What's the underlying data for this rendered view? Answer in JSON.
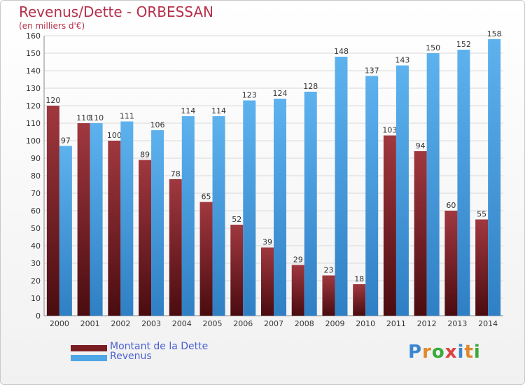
{
  "header": {
    "title": "Revenus/Dette - ORBESSAN",
    "subtitle": "(en milliers d'€)"
  },
  "legend": {
    "items": [
      {
        "label": "Montant de la Dette",
        "color": "#7b1e23"
      },
      {
        "label": "Revenus",
        "color": "#4ea6e6"
      }
    ]
  },
  "logo": {
    "letters": [
      "P",
      "r",
      "o",
      "x",
      "i",
      "t",
      "i"
    ],
    "colors": [
      "#3a86d0",
      "#e0892a",
      "#3aaa3a",
      "#e04040",
      "#3a86d0",
      "#e0892a",
      "#3aaa3a"
    ]
  },
  "chart_data": {
    "type": "bar",
    "title": "Revenus/Dette - ORBESSAN",
    "subtitle": "(en milliers d'€)",
    "categories": [
      "2000",
      "2001",
      "2002",
      "2003",
      "2004",
      "2005",
      "2006",
      "2007",
      "2008",
      "2009",
      "2010",
      "2011",
      "2012",
      "2013",
      "2014"
    ],
    "series": [
      {
        "name": "Montant de la Dette",
        "color": "#7b1e23",
        "values": [
          120,
          110,
          100,
          89,
          78,
          65,
          52,
          39,
          29,
          23,
          18,
          103,
          94,
          60,
          55
        ]
      },
      {
        "name": "Revenus",
        "color": "#4ea6e6",
        "values": [
          97,
          110,
          111,
          106,
          114,
          114,
          123,
          124,
          128,
          148,
          137,
          143,
          150,
          152,
          158
        ]
      }
    ],
    "ylim": [
      0,
      160
    ],
    "ytick_step": 10,
    "grid": true,
    "legend_position": "bottom-left"
  }
}
